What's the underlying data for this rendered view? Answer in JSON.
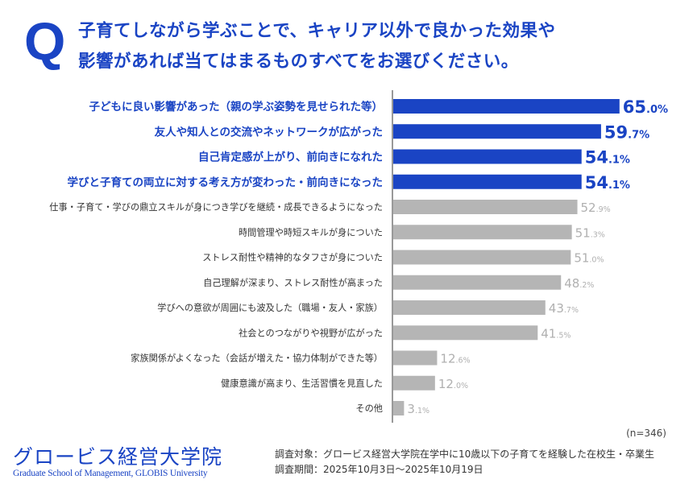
{
  "question_mark": "Q",
  "title_lines": [
    "子育てしながら学ぶことで、キャリア以外で良かった効果や",
    "影響があれば当てはまるものすべてをお選びください。"
  ],
  "sample_size": "(n=346)",
  "logo": {
    "jp": "グロービス経営大学院",
    "en": "Graduate School of Management, GLOBIS University"
  },
  "notes": [
    "調査対象：グロービス経営大学院在学中に10歳以下の子育てを経験した在校生・卒業生",
    "調査期間：2025年10月3日～2025年10月19日"
  ],
  "colors": {
    "highlight": "#1a44c4",
    "normal": "#b5b5b5",
    "normal_text": "#333333",
    "normal_value": "#b0b0b0"
  },
  "chart_data": {
    "type": "bar",
    "orientation": "horizontal",
    "title": "子育てしながら学ぶことで、キャリア以外で良かった効果や影響があれば当てはまるものすべてをお選びください。",
    "xlabel": "",
    "ylabel": "",
    "xlim": [
      0,
      70
    ],
    "unit": "%",
    "categories": [
      "子どもに良い影響があった（親の学ぶ姿勢を見せられた等）",
      "友人や知人との交流やネットワークが広がった",
      "自己肯定感が上がり、前向きになれた",
      "学びと子育ての両立に対する考え方が変わった・前向きになった",
      "仕事・子育て・学びの鼎立スキルが身につき学びを継続・成長できるようになった",
      "時間管理や時短スキルが身についた",
      "ストレス耐性や精神的なタフさが身についた",
      "自己理解が深まり、ストレス耐性が高まった",
      "学びへの意欲が周囲にも波及した（職場・友人・家族）",
      "社会とのつながりや視野が広がった",
      "家族関係がよくなった（会話が増えた・協力体制ができた等）",
      "健康意識が高まり、生活習慣を見直した",
      "その他"
    ],
    "values": [
      65.0,
      59.7,
      54.1,
      54.1,
      52.9,
      51.3,
      51.0,
      48.2,
      43.7,
      41.5,
      12.6,
      12.0,
      3.1
    ],
    "highlighted": [
      true,
      true,
      true,
      true,
      false,
      false,
      false,
      false,
      false,
      false,
      false,
      false,
      false
    ]
  }
}
